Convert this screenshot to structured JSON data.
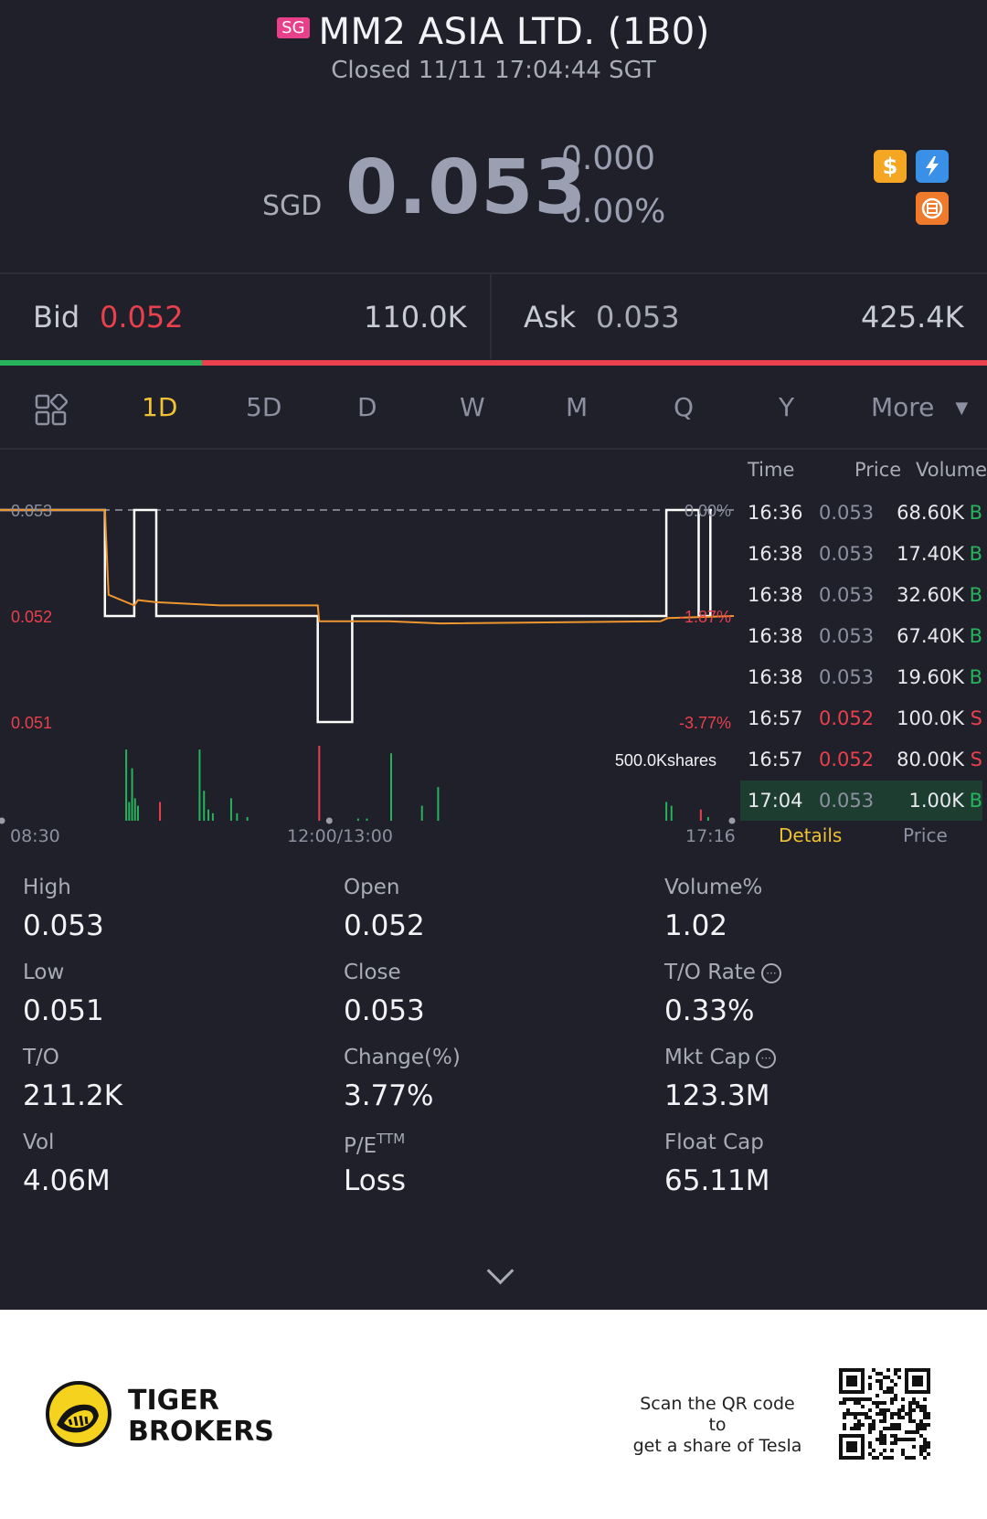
{
  "header": {
    "market_badge": "SG",
    "title": "MM2 ASIA LTD. (1B0)",
    "status": "Closed 11/11 17:04:44 SGT"
  },
  "quote": {
    "currency": "SGD",
    "price": "0.053",
    "change": "0.000",
    "change_pct": "0.00%",
    "icons": [
      "dollar-icon",
      "lightning-icon",
      "chip-icon"
    ],
    "icon_colors": [
      "#f5a623",
      "#3a8fe6",
      "#f07a2c"
    ]
  },
  "bid_ask": {
    "bid_label": "Bid",
    "bid_price": "0.052",
    "bid_size": "110.0K",
    "ask_label": "Ask",
    "ask_price": "0.053",
    "ask_size": "425.4K",
    "bid_ratio": 0.205
  },
  "tabs": {
    "grid_icon": "grid-icon",
    "items": [
      "1D",
      "5D",
      "D",
      "W",
      "M",
      "Q",
      "Y"
    ],
    "active": "1D",
    "more": "More"
  },
  "chart_data": {
    "type": "line",
    "price_axis_labels": [
      "0.053",
      "0.052",
      "0.051"
    ],
    "pct_axis_labels": [
      "0.00%",
      "-1.87%",
      "-3.77%"
    ],
    "time_labels": [
      "08:30",
      "12:00/13:00",
      "17:16"
    ],
    "volume_scale_label": "500.0Kshares",
    "prev_close": 0.053,
    "ylim": [
      0.051,
      0.053
    ],
    "series": [
      {
        "type": "price",
        "color": "#ffffff",
        "points": [
          [
            0,
            0.053
          ],
          [
            0.143,
            0.053
          ],
          [
            0.143,
            0.052
          ],
          [
            0.183,
            0.052
          ],
          [
            0.183,
            0.053
          ],
          [
            0.213,
            0.053
          ],
          [
            0.213,
            0.052
          ],
          [
            0.433,
            0.052
          ],
          [
            0.433,
            0.051
          ],
          [
            0.48,
            0.051
          ],
          [
            0.48,
            0.052
          ],
          [
            0.908,
            0.052
          ],
          [
            0.908,
            0.053
          ],
          [
            0.952,
            0.053
          ],
          [
            0.952,
            0.052
          ],
          [
            0.968,
            0.052
          ],
          [
            0.968,
            0.053
          ],
          [
            0.97,
            0.053
          ]
        ]
      },
      {
        "type": "average",
        "color": "#f0962e",
        "points": [
          [
            0,
            0.053
          ],
          [
            0.143,
            0.053
          ],
          [
            0.148,
            0.0522
          ],
          [
            0.183,
            0.0521
          ],
          [
            0.188,
            0.05215
          ],
          [
            0.213,
            0.05213
          ],
          [
            0.3,
            0.0521
          ],
          [
            0.433,
            0.0521
          ],
          [
            0.435,
            0.05195
          ],
          [
            0.48,
            0.05195
          ],
          [
            0.53,
            0.05195
          ],
          [
            0.6,
            0.05193
          ],
          [
            0.9,
            0.05195
          ],
          [
            0.91,
            0.05198
          ],
          [
            1.0,
            0.052
          ]
        ]
      }
    ],
    "volume_bars": [
      {
        "x": 0.172,
        "v": 0.95,
        "c": "g"
      },
      {
        "x": 0.176,
        "v": 0.25,
        "c": "g"
      },
      {
        "x": 0.18,
        "v": 0.7,
        "c": "g"
      },
      {
        "x": 0.184,
        "v": 0.3,
        "c": "g"
      },
      {
        "x": 0.188,
        "v": 0.2,
        "c": "g"
      },
      {
        "x": 0.218,
        "v": 0.25,
        "c": "r"
      },
      {
        "x": 0.272,
        "v": 0.95,
        "c": "g"
      },
      {
        "x": 0.278,
        "v": 0.4,
        "c": "g"
      },
      {
        "x": 0.284,
        "v": 0.15,
        "c": "g"
      },
      {
        "x": 0.29,
        "v": 0.1,
        "c": "g"
      },
      {
        "x": 0.315,
        "v": 0.3,
        "c": "g"
      },
      {
        "x": 0.323,
        "v": 0.1,
        "c": "g"
      },
      {
        "x": 0.337,
        "v": 0.05,
        "c": "g"
      },
      {
        "x": 0.435,
        "v": 1.0,
        "c": "r"
      },
      {
        "x": 0.488,
        "v": 0.03,
        "c": "g"
      },
      {
        "x": 0.5,
        "v": 0.03,
        "c": "g"
      },
      {
        "x": 0.533,
        "v": 0.9,
        "c": "g"
      },
      {
        "x": 0.575,
        "v": 0.2,
        "c": "g"
      },
      {
        "x": 0.597,
        "v": 0.45,
        "c": "g"
      },
      {
        "x": 0.908,
        "v": 0.25,
        "c": "g"
      },
      {
        "x": 0.915,
        "v": 0.2,
        "c": "g"
      },
      {
        "x": 0.955,
        "v": 0.15,
        "c": "r"
      },
      {
        "x": 0.965,
        "v": 0.05,
        "c": "g"
      }
    ]
  },
  "ticks": {
    "headers": {
      "time": "Time",
      "price": "Price",
      "volume": "Volume"
    },
    "rows": [
      {
        "time": "16:36",
        "price": "0.053",
        "vol": "68.60K",
        "side": "B"
      },
      {
        "time": "16:38",
        "price": "0.053",
        "vol": "17.40K",
        "side": "B"
      },
      {
        "time": "16:38",
        "price": "0.053",
        "vol": "32.60K",
        "side": "B"
      },
      {
        "time": "16:38",
        "price": "0.053",
        "vol": "67.40K",
        "side": "B"
      },
      {
        "time": "16:38",
        "price": "0.053",
        "vol": "19.60K",
        "side": "B"
      },
      {
        "time": "16:57",
        "price": "0.052",
        "vol": "100.0K",
        "side": "S"
      },
      {
        "time": "16:57",
        "price": "0.052",
        "vol": "80.00K",
        "side": "S"
      },
      {
        "time": "17:04",
        "price": "0.053",
        "vol": "1.00K",
        "side": "B"
      }
    ],
    "tab_details": "Details",
    "tab_price": "Price"
  },
  "stats": {
    "high_label": "High",
    "high": "0.053",
    "open_label": "Open",
    "open": "0.052",
    "volpct_label": "Volume%",
    "volpct": "1.02",
    "low_label": "Low",
    "low": "0.051",
    "close_label": "Close",
    "close": "0.053",
    "to_rate_label": "T/O Rate",
    "to_rate": "0.33%",
    "to_label": "T/O",
    "to": "211.2K",
    "change_label": "Change(%)",
    "change": "3.77%",
    "mktcap_label": "Mkt Cap",
    "mktcap": "123.3M",
    "vol_label": "Vol",
    "vol": "4.06M",
    "pe_label": "P/E",
    "pe_sup": "TTM",
    "pe": "Loss",
    "floatcap_label": "Float Cap",
    "floatcap": "65.11M"
  },
  "footer": {
    "brand_line1": "TIGER",
    "brand_line2": "BROKERS",
    "scan_line1": "Scan the QR code to",
    "scan_line2": "get a share of Tesla"
  }
}
